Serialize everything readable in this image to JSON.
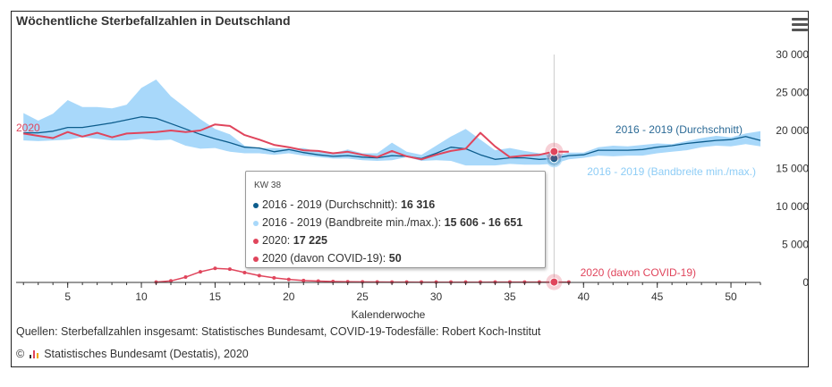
{
  "title": "Wöchentliche Sterbefallzahlen in Deutschland",
  "chart_data": {
    "type": "line",
    "title": "Wöchentliche Sterbefallzahlen in Deutschland",
    "xlabel": "Kalenderwoche",
    "ylabel": "",
    "xlim": [
      1.5,
      52
    ],
    "ylim": [
      0,
      30000
    ],
    "xticks": [
      5,
      10,
      15,
      20,
      25,
      30,
      35,
      40,
      45,
      50
    ],
    "xtick_labels": [
      "5",
      "10",
      "15",
      "20",
      "25",
      "30",
      "35",
      "40",
      "45",
      "50"
    ],
    "yticks": [
      0,
      5000,
      10000,
      15000,
      20000,
      25000,
      30000
    ],
    "ytick_labels": [
      "0",
      "5 000",
      "10 000",
      "15 000",
      "20 000",
      "25 000",
      "30 000"
    ],
    "series": [
      {
        "name": "2016 - 2019 (Bandbreite min./max.)",
        "type": "range",
        "color": "#a8d8fa",
        "x": [
          2,
          3,
          4,
          5,
          6,
          7,
          8,
          9,
          10,
          11,
          12,
          13,
          14,
          15,
          16,
          17,
          18,
          19,
          20,
          21,
          22,
          23,
          24,
          25,
          26,
          27,
          28,
          29,
          30,
          31,
          32,
          33,
          34,
          35,
          36,
          37,
          38,
          39,
          40,
          41,
          42,
          43,
          44,
          45,
          46,
          47,
          48,
          49,
          50,
          51,
          52
        ],
        "low": [
          18700,
          18600,
          18700,
          18800,
          19100,
          18900,
          18700,
          18700,
          18900,
          18700,
          18800,
          18000,
          17600,
          17700,
          17200,
          17000,
          17000,
          16800,
          17000,
          16700,
          16500,
          16300,
          16300,
          16100,
          16000,
          16100,
          16500,
          16000,
          16100,
          16000,
          15400,
          15400,
          15400,
          15600,
          15500,
          15500,
          15606,
          16200,
          16400,
          16700,
          16600,
          16700,
          16700,
          17000,
          17200,
          17400,
          17800,
          18000,
          17900,
          18200,
          17900
        ],
        "high": [
          22300,
          21300,
          22200,
          24000,
          23100,
          23100,
          22900,
          23400,
          25600,
          26700,
          24500,
          23000,
          21500,
          20200,
          19500,
          18000,
          17700,
          17700,
          17600,
          17700,
          17200,
          17000,
          17500,
          17000,
          17000,
          18400,
          17200,
          16800,
          18000,
          19200,
          20200,
          18800,
          17400,
          17700,
          17300,
          17000,
          16651,
          17100,
          17100,
          17800,
          18000,
          17900,
          18100,
          18300,
          18200,
          18600,
          19000,
          19300,
          19100,
          19600,
          19900
        ]
      },
      {
        "name": "2016 - 2019 (Durchschnitt)",
        "color": "#0c5c8c",
        "x": [
          2,
          3,
          4,
          5,
          6,
          7,
          8,
          9,
          10,
          11,
          12,
          13,
          14,
          15,
          16,
          17,
          18,
          19,
          20,
          21,
          22,
          23,
          24,
          25,
          26,
          27,
          28,
          29,
          30,
          31,
          32,
          33,
          34,
          35,
          36,
          37,
          38,
          39,
          40,
          41,
          42,
          43,
          44,
          45,
          46,
          47,
          48,
          49,
          50,
          51,
          52
        ],
        "values": [
          19700,
          19700,
          19900,
          20400,
          20400,
          20700,
          21000,
          21400,
          21800,
          21600,
          20900,
          20200,
          19500,
          18900,
          18400,
          17800,
          17700,
          17200,
          17500,
          17100,
          16800,
          16600,
          16700,
          16500,
          16400,
          16700,
          16600,
          16300,
          17000,
          17800,
          17600,
          16800,
          16200,
          16400,
          16400,
          16200,
          16316,
          16700,
          16800,
          17400,
          17400,
          17400,
          17500,
          17800,
          18000,
          18300,
          18500,
          18700,
          18800,
          19200,
          18700
        ]
      },
      {
        "name": "2020",
        "color": "#e0455c",
        "x": [
          2,
          3,
          4,
          5,
          6,
          7,
          8,
          9,
          10,
          11,
          12,
          13,
          14,
          15,
          16,
          17,
          18,
          19,
          20,
          21,
          22,
          23,
          24,
          25,
          26,
          27,
          28,
          29,
          30,
          31,
          32,
          33,
          34,
          35,
          36,
          37,
          38,
          39
        ],
        "values": [
          19600,
          19300,
          19000,
          19800,
          19200,
          19700,
          19100,
          19600,
          19700,
          19800,
          20000,
          19800,
          20000,
          20800,
          20600,
          19400,
          18800,
          18100,
          17800,
          17400,
          17300,
          17000,
          17200,
          16800,
          16500,
          17300,
          16600,
          16200,
          16800,
          17300,
          17600,
          19700,
          17900,
          16500,
          16700,
          16800,
          17225,
          17200
        ]
      },
      {
        "name": "2020 (davon COVID-19)",
        "color": "#e0455c",
        "x": [
          11,
          12,
          13,
          14,
          15,
          16,
          17,
          18,
          19,
          20,
          21,
          22,
          23,
          24,
          25,
          26,
          27,
          28,
          29,
          30,
          31,
          32,
          33,
          34,
          35,
          36,
          37,
          38,
          39
        ],
        "values": [
          50,
          200,
          700,
          1400,
          1850,
          1750,
          1300,
          900,
          600,
          400,
          250,
          180,
          120,
          90,
          70,
          60,
          50,
          45,
          40,
          40,
          40,
          40,
          40,
          45,
          50,
          50,
          50,
          50,
          50
        ]
      }
    ],
    "series_labels": {
      "avg": "2016 - 2019 (Durchschnitt)",
      "range": "2016 - 2019 (Bandbreite min./max.)",
      "y2020": "2020",
      "covid": "2020 (davon COVID-19)"
    },
    "colors": {
      "range_fill": "#a8d8fa",
      "range_label": "#8ecdf6",
      "avg": "#0c5c8c",
      "avg_label": "#2b6a96",
      "y2020": "#e0455c",
      "axis": "#333333",
      "crosshair": "#cccccc"
    },
    "highlight_week": 38
  },
  "tooltip": {
    "header": "KW 38",
    "rows": [
      {
        "label": "2016 - 2019 (Durchschnitt): ",
        "value": "16 316",
        "color": "#0c5c8c"
      },
      {
        "label": "2016 - 2019 (Bandbreite min./max.): ",
        "value": "15 606 - 16 651",
        "color": "#a8d8fa"
      },
      {
        "label": "2020: ",
        "value": "17 225",
        "color": "#e0455c"
      },
      {
        "label": "2020 (davon COVID-19): ",
        "value": "50",
        "color": "#e0455c"
      }
    ]
  },
  "footer": {
    "source": "Quellen: Sterbefallzahlen insgesamt: Statistisches Bundesamt, COVID-19-Todesfälle: Robert Koch-Institut",
    "copyright_symbol": "©",
    "copyright_text": "Statistisches Bundesamt (Destatis), 2020"
  }
}
